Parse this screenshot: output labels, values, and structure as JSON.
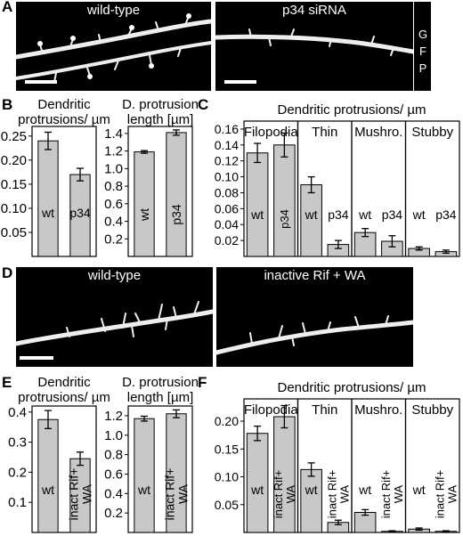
{
  "figure": {
    "panel_letters": [
      "A",
      "B",
      "C",
      "D",
      "E",
      "F"
    ],
    "colors": {
      "bar_fill": "#c8c8c8",
      "bar_stroke": "#000000",
      "micro_bg": "#000000",
      "micro_fg": "#ffffff"
    }
  },
  "panel_a": {
    "left_title": "wild-type",
    "right_title": "p34 siRNA",
    "channel_label": [
      "G",
      "F",
      "P"
    ]
  },
  "panel_d": {
    "left_title": "wild-type",
    "right_title": "inactive Rif + WA"
  },
  "chart_data": [
    {
      "id": "B1",
      "type": "bar",
      "title_lines": [
        "Dendritic",
        "protrusions/ µm"
      ],
      "categories": [
        "wt",
        "p34"
      ],
      "values": [
        0.24,
        0.17
      ],
      "errors": [
        0.018,
        0.013
      ],
      "ylim": [
        0,
        0.27
      ],
      "yticks": [
        0.05,
        0.1,
        0.15,
        0.2,
        0.25
      ],
      "ytick_labels": [
        "0.05",
        "0.10",
        "0.15",
        "0.20",
        "0.25"
      ],
      "bar_label_rotated": false
    },
    {
      "id": "B2",
      "type": "bar",
      "title_lines": [
        "D. protrusion",
        "length [µm]"
      ],
      "categories": [
        "wt",
        "p34"
      ],
      "values": [
        1.19,
        1.41
      ],
      "errors": [
        0.015,
        0.03
      ],
      "ylim": [
        0,
        1.48
      ],
      "yticks": [
        0.2,
        0.4,
        0.6,
        0.8,
        1.0,
        1.2,
        1.4
      ],
      "ytick_labels": [
        "0.2",
        "0.4",
        "0.6",
        "0.8",
        "1.0",
        "1.2",
        "1.4"
      ],
      "bar_label_rotated": true
    },
    {
      "id": "C",
      "type": "bar",
      "title_lines": [
        "Dendritic protrusions/ µm"
      ],
      "groups": [
        "Filopodia",
        "Thin",
        "Mushro.",
        "Stubby"
      ],
      "categories": [
        "wt",
        "p34"
      ],
      "values": [
        [
          0.13,
          0.14
        ],
        [
          0.09,
          0.015
        ],
        [
          0.03,
          0.019
        ],
        [
          0.01,
          0.006
        ]
      ],
      "errors": [
        [
          0.012,
          0.015
        ],
        [
          0.01,
          0.005
        ],
        [
          0.005,
          0.007
        ],
        [
          0.002,
          0.002
        ]
      ],
      "ylim": [
        0,
        0.17
      ],
      "yticks": [
        0.02,
        0.04,
        0.06,
        0.08,
        0.1,
        0.12,
        0.14,
        0.16
      ],
      "ytick_labels": [
        "0.02",
        "0.04",
        "0.06",
        "0.08",
        "0.10",
        "0.12",
        "0.14",
        "0.16"
      ],
      "bar_label_rotated": [
        [
          false,
          true
        ],
        [
          false,
          false
        ],
        [
          false,
          false
        ],
        [
          false,
          false
        ]
      ]
    },
    {
      "id": "E1",
      "type": "bar",
      "title_lines": [
        "Dendritic",
        "protrusions/ µm"
      ],
      "categories": [
        "wt",
        "inact Rif+ WA"
      ],
      "values": [
        0.375,
        0.245
      ],
      "errors": [
        0.03,
        0.022
      ],
      "ylim": [
        0,
        0.42
      ],
      "yticks": [
        0.1,
        0.2,
        0.3,
        0.4
      ],
      "ytick_labels": [
        "0.1",
        "0.2",
        "0.3",
        "0.4"
      ],
      "bar_label_rotated": [
        false,
        true
      ]
    },
    {
      "id": "E2",
      "type": "bar",
      "title_lines": [
        "D. protrusion",
        "length [µm]"
      ],
      "categories": [
        "wt",
        "inact Rif+ WA"
      ],
      "values": [
        1.17,
        1.22
      ],
      "errors": [
        0.025,
        0.04
      ],
      "ylim": [
        0,
        1.3
      ],
      "yticks": [
        0.2,
        0.4,
        0.6,
        0.8,
        1.0,
        1.2
      ],
      "ytick_labels": [
        "0.2",
        "0.4",
        "0.6",
        "0.8",
        "1.0",
        "1.2"
      ],
      "bar_label_rotated": [
        false,
        true
      ]
    },
    {
      "id": "F",
      "type": "bar",
      "title_lines": [
        "Dendritic protrusions/ µm"
      ],
      "groups": [
        "Filopodia",
        "Thin",
        "Mushro.",
        "Stubby"
      ],
      "categories": [
        "wt",
        "inact Rif+ WA"
      ],
      "values": [
        [
          0.178,
          0.208
        ],
        [
          0.113,
          0.018
        ],
        [
          0.036,
          0.002
        ],
        [
          0.006,
          0.002
        ]
      ],
      "errors": [
        [
          0.013,
          0.02
        ],
        [
          0.012,
          0.004
        ],
        [
          0.005,
          0.001
        ],
        [
          0.002,
          0.001
        ]
      ],
      "ylim": [
        0,
        0.24
      ],
      "yticks": [
        0.05,
        0.1,
        0.15,
        0.2
      ],
      "ytick_labels": [
        "0.05",
        "0.10",
        "0.15",
        "0.20"
      ],
      "bar_label_rotated": [
        [
          false,
          true
        ],
        [
          false,
          true
        ],
        [
          false,
          true
        ],
        [
          false,
          true
        ]
      ]
    }
  ]
}
